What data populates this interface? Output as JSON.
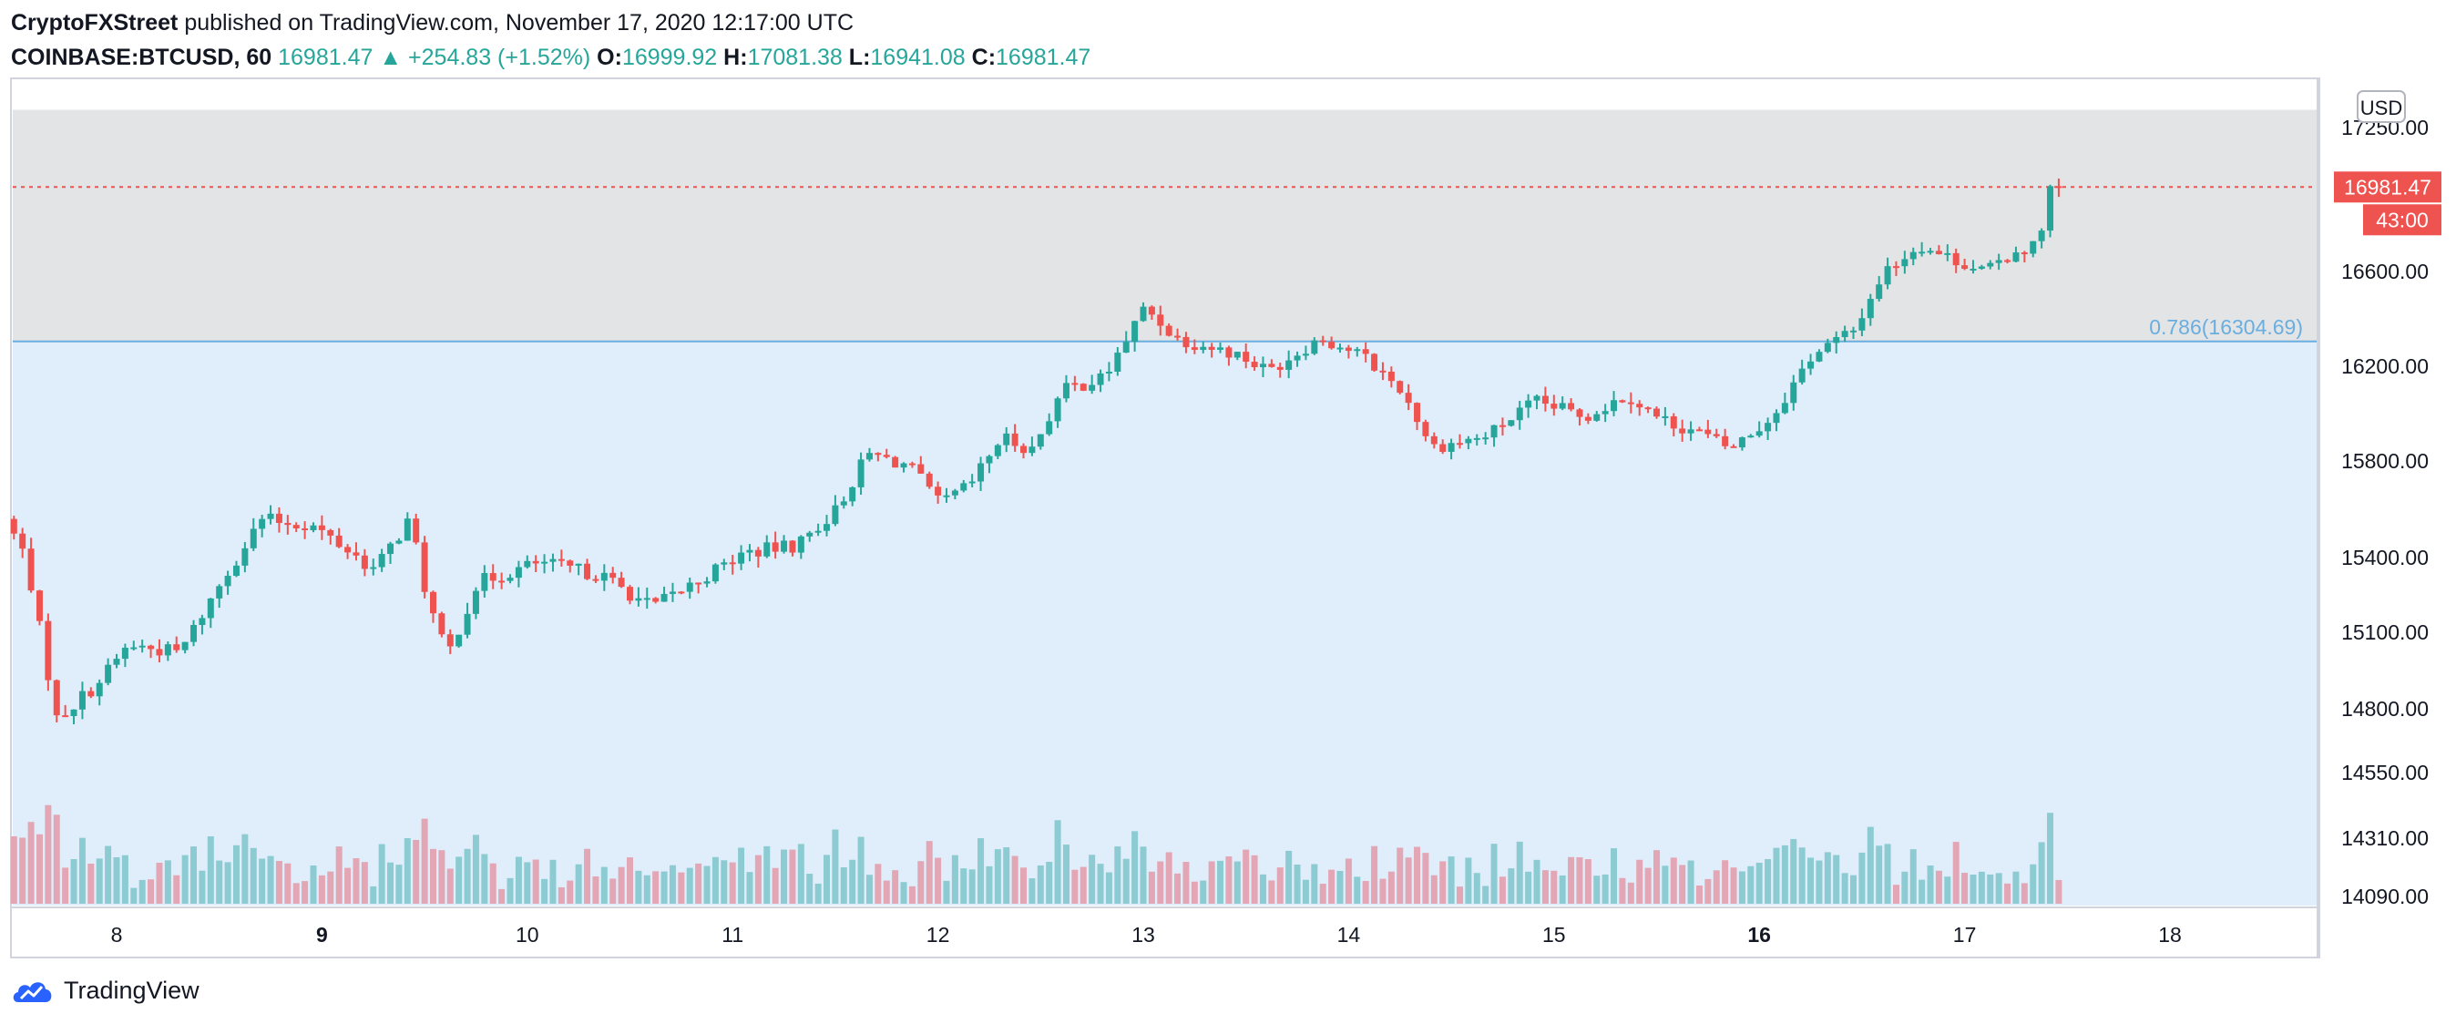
{
  "header": {
    "author": "CryptoFXStreet",
    "published": "published on TradingView.com, November 17, 2020 12:17:00 UTC",
    "symbol": "COINBASE:BTCUSD, 60",
    "last": "16981.47",
    "change_arrow": "▲",
    "change": "+254.83 (+1.52%)",
    "o_label": "O:",
    "o_value": "16999.92",
    "h_label": "H:",
    "h_value": "17081.38",
    "l_label": "L:",
    "l_value": "16941.08",
    "c_label": "C:",
    "c_value": "16981.47"
  },
  "footer": {
    "brand": "TradingView"
  },
  "colors": {
    "up": "#26a69a",
    "down": "#ef5350",
    "up_vol": "#8ccbd1",
    "down_vol": "#e3a6b4",
    "zone_upper": "#e3e4e6",
    "zone_lower": "#e0eefb",
    "fib_line": "#6aaee0"
  },
  "chart_data": {
    "type": "candlestick",
    "currency": "USD",
    "y_ticks": [
      "17250.00",
      "16600.00",
      "16200.00",
      "15800.00",
      "15400.00",
      "15100.00",
      "14800.00",
      "14550.00",
      "14310.00",
      "14090.00"
    ],
    "x_ticks": [
      {
        "label": "8",
        "day": 8,
        "bold": false
      },
      {
        "label": "9",
        "day": 9,
        "bold": true
      },
      {
        "label": "10",
        "day": 10,
        "bold": false
      },
      {
        "label": "11",
        "day": 11,
        "bold": false
      },
      {
        "label": "12",
        "day": 12,
        "bold": false
      },
      {
        "label": "13",
        "day": 13,
        "bold": false
      },
      {
        "label": "14",
        "day": 14,
        "bold": false
      },
      {
        "label": "15",
        "day": 15,
        "bold": false
      },
      {
        "label": "16",
        "day": 16,
        "bold": true
      },
      {
        "label": "17",
        "day": 17,
        "bold": false
      },
      {
        "label": "18",
        "day": 18,
        "bold": false
      }
    ],
    "x_range_days": [
      7.5,
      18.75
    ],
    "last_price": 16981.47,
    "last_price_label": "16981.47",
    "countdown_label": "43:00",
    "fib_level": {
      "value": 16304.69,
      "label": "0.786(16304.69)"
    },
    "zone_top": 17330,
    "anchors": [
      {
        "t": 7.5,
        "p": 15560
      },
      {
        "t": 7.6,
        "p": 15400
      },
      {
        "t": 7.75,
        "p": 14760
      },
      {
        "t": 7.95,
        "p": 14900
      },
      {
        "t": 8.1,
        "p": 15050
      },
      {
        "t": 8.35,
        "p": 15020
      },
      {
        "t": 8.55,
        "p": 15300
      },
      {
        "t": 8.75,
        "p": 15560
      },
      {
        "t": 9.0,
        "p": 15530
      },
      {
        "t": 9.3,
        "p": 15350
      },
      {
        "t": 9.47,
        "p": 15560
      },
      {
        "t": 9.55,
        "p": 15250
      },
      {
        "t": 9.65,
        "p": 15000
      },
      {
        "t": 9.8,
        "p": 15300
      },
      {
        "t": 10.1,
        "p": 15380
      },
      {
        "t": 10.4,
        "p": 15330
      },
      {
        "t": 10.65,
        "p": 15200
      },
      {
        "t": 10.9,
        "p": 15320
      },
      {
        "t": 11.1,
        "p": 15420
      },
      {
        "t": 11.35,
        "p": 15450
      },
      {
        "t": 11.55,
        "p": 15600
      },
      {
        "t": 11.7,
        "p": 15830
      },
      {
        "t": 11.9,
        "p": 15780
      },
      {
        "t": 12.05,
        "p": 15620
      },
      {
        "t": 12.2,
        "p": 15700
      },
      {
        "t": 12.35,
        "p": 15900
      },
      {
        "t": 12.5,
        "p": 15850
      },
      {
        "t": 12.65,
        "p": 16100
      },
      {
        "t": 12.85,
        "p": 16150
      },
      {
        "t": 13.05,
        "p": 16450
      },
      {
        "t": 13.2,
        "p": 16320
      },
      {
        "t": 13.5,
        "p": 16250
      },
      {
        "t": 13.65,
        "p": 16180
      },
      {
        "t": 13.9,
        "p": 16320
      },
      {
        "t": 14.1,
        "p": 16250
      },
      {
        "t": 14.3,
        "p": 16100
      },
      {
        "t": 14.45,
        "p": 15860
      },
      {
        "t": 14.7,
        "p": 15900
      },
      {
        "t": 14.95,
        "p": 16050
      },
      {
        "t": 15.2,
        "p": 15990
      },
      {
        "t": 15.4,
        "p": 16080
      },
      {
        "t": 15.55,
        "p": 15980
      },
      {
        "t": 15.75,
        "p": 15920
      },
      {
        "t": 15.9,
        "p": 15850
      },
      {
        "t": 16.1,
        "p": 15980
      },
      {
        "t": 16.3,
        "p": 16250
      },
      {
        "t": 16.5,
        "p": 16350
      },
      {
        "t": 16.65,
        "p": 16600
      },
      {
        "t": 16.82,
        "p": 16720
      },
      {
        "t": 17.0,
        "p": 16650
      },
      {
        "t": 17.15,
        "p": 16600
      },
      {
        "t": 17.3,
        "p": 16700
      },
      {
        "t": 17.4,
        "p": 16720
      },
      {
        "t": 17.45,
        "p": 16981
      }
    ]
  }
}
